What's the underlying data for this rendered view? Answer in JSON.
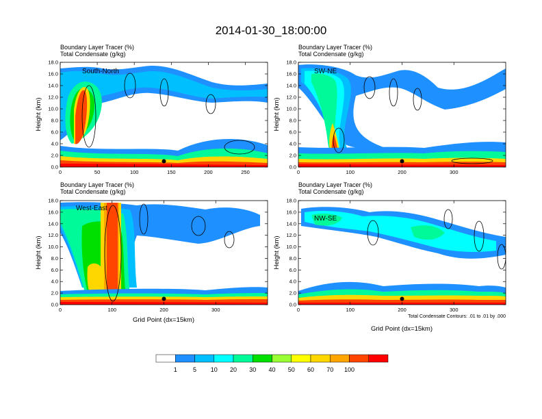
{
  "title": "2014-01-30_18:00:00",
  "colors": {
    "levels": [
      "#ffffff",
      "#1e90ff",
      "#00bfff",
      "#00ffff",
      "#00fa9a",
      "#00e000",
      "#9aff32",
      "#ffff00",
      "#ffd700",
      "#ffa500",
      "#ff4500",
      "#ff0000"
    ],
    "contour": "#000000",
    "marker": "#000000"
  },
  "chart_data": [
    {
      "type": "heatmap",
      "cross_section": "South-North",
      "title_left_1": "Boundary Layer Tracer   (%)",
      "title_left_2": "Total Condensate   (g/kg)",
      "ylabel": "Height (km)",
      "xlabel": "",
      "xlim": [
        0,
        280
      ],
      "ylim": [
        0,
        18
      ],
      "xticks": [
        0,
        50,
        100,
        150,
        200,
        250
      ],
      "yticks": [
        "0.0",
        "2.0",
        "4.0",
        "6.0",
        "8.0",
        "10.0",
        "12.0",
        "14.0",
        "16.0",
        "18.0"
      ],
      "marker_x": 140,
      "marker_y": 1.0,
      "note": ""
    },
    {
      "type": "heatmap",
      "cross_section": "SW-NE",
      "title_left_1": "Boundary Layer Tracer   (%)",
      "title_left_2": "Total Condensate   (g/kg)",
      "ylabel": "Height (km)",
      "xlabel": "",
      "xlim": [
        0,
        400
      ],
      "ylim": [
        0,
        18
      ],
      "xticks": [
        0,
        100,
        200,
        300
      ],
      "yticks": [
        "0.0",
        "2.0",
        "4.0",
        "6.0",
        "8.0",
        "10.0",
        "12.0",
        "14.0",
        "16.0",
        "18.0"
      ],
      "marker_x": 200,
      "marker_y": 1.0,
      "note": ""
    },
    {
      "type": "heatmap",
      "cross_section": "West-East",
      "title_left_1": "Boundary Layer Tracer   (%)",
      "title_left_2": "Total Condensate   (g/kg)",
      "ylabel": "Height (km)",
      "xlabel": "Grid Point (dx=15km)",
      "xlim": [
        0,
        400
      ],
      "ylim": [
        0,
        18
      ],
      "xticks": [
        0,
        100,
        200,
        300
      ],
      "yticks": [
        "0.0",
        "2.0",
        "4.0",
        "6.0",
        "8.0",
        "10.0",
        "12.0",
        "14.0",
        "16.0",
        "18.0"
      ],
      "marker_x": 200,
      "marker_y": 1.0,
      "note": ""
    },
    {
      "type": "heatmap",
      "cross_section": "NW-SE",
      "title_left_1": "Boundary Layer Tracer   (%)",
      "title_left_2": "Total Condensate   (g/kg)",
      "ylabel": "Height (km)",
      "xlabel": "Grid Point (dx=15km)",
      "xlim": [
        0,
        400
      ],
      "ylim": [
        0,
        18
      ],
      "xticks": [
        0,
        100,
        200,
        300
      ],
      "yticks": [
        "0.0",
        "2.0",
        "4.0",
        "6.0",
        "8.0",
        "10.0",
        "12.0",
        "14.0",
        "16.0",
        "18.0"
      ],
      "marker_x": 200,
      "marker_y": 1.0,
      "note": "Total Condensate Contours: .01 to .01 by .000"
    }
  ],
  "colorbar": {
    "labels": [
      "1",
      "5",
      "10",
      "20",
      "30",
      "40",
      "50",
      "60",
      "70",
      "100"
    ]
  }
}
